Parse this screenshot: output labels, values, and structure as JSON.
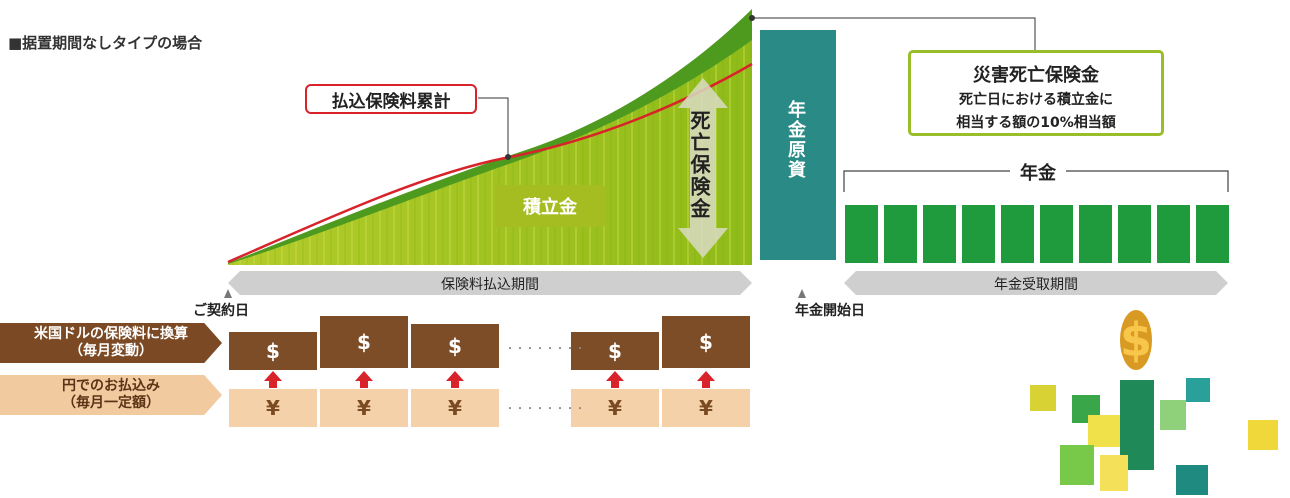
{
  "header": {
    "title": "■据置期間なしタイプの場合"
  },
  "labels": {
    "premium_cumulative": "払込保険料累計",
    "accumulated_fund": "積立金",
    "death_benefit": "死亡保険金",
    "annuity_source": "年金原資",
    "annuity": "年金",
    "contract_date": "ご契約日",
    "annuity_start_date": "年金開始日",
    "payment_period": "保険料払込期間",
    "annuity_period": "年金受取期間",
    "dots": "・・・・・・・・"
  },
  "accident_box": {
    "heading": "災害死亡保険金",
    "line1": "死亡日における積立金に",
    "line2": "相当する額の10%相当額"
  },
  "rows": {
    "usd_label_1": "米国ドルの保険料に換算",
    "usd_label_2": "（毎月変動）",
    "jpy_label_1": "円でのお払込み",
    "jpy_label_2": "（毎月一定額）",
    "usd_symbol": "$",
    "jpy_symbol": "¥"
  },
  "colors": {
    "green_dark": "#4e9a1f",
    "green_light": "#9ac21e",
    "teal": "#2a8a86",
    "annuity_green": "#1f9a3c",
    "red": "#d8232a",
    "brown": "#7d4d28",
    "tan": "#f4d1a8",
    "gray_arrow": "#c8c8c8"
  }
}
